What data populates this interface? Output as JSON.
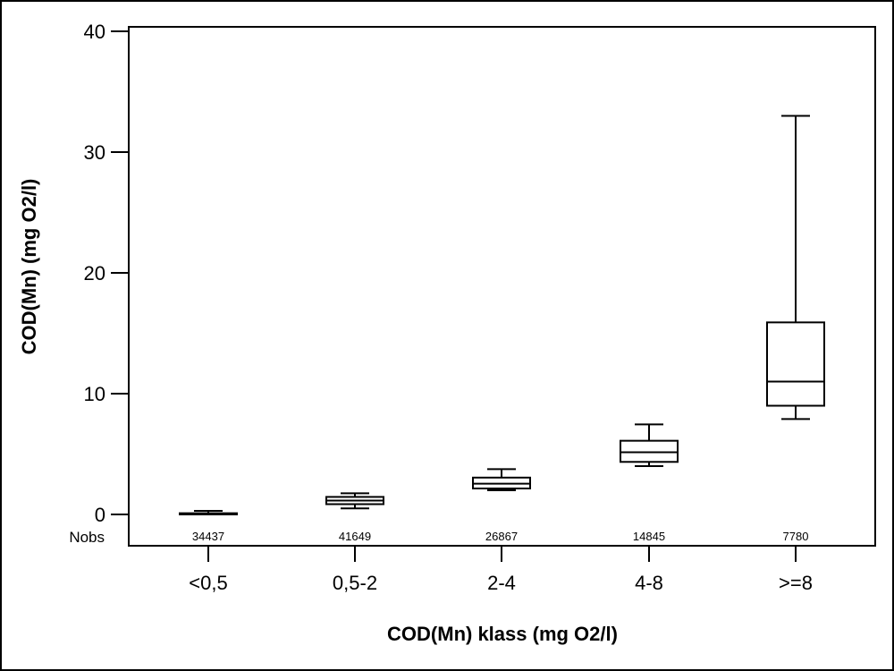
{
  "chart_data": {
    "type": "boxplot",
    "xlabel": "COD(Mn) klass (mg O2/l)",
    "ylabel": "COD(Mn) (mg O2/l)",
    "ylim": [
      0,
      40
    ],
    "yticks": [
      "0",
      "10",
      "20",
      "30",
      "40"
    ],
    "nobs_label": "Nobs",
    "grid": false,
    "categories": [
      "<0,5",
      "0,5-2",
      "2-4",
      "4-8",
      ">=8"
    ],
    "boxes": [
      {
        "category": "<0,5",
        "whisker_low": 0.0,
        "q1": 0.0,
        "median": 0.0,
        "q3": 0.1,
        "whisker_high": 0.3,
        "nobs": "34437"
      },
      {
        "category": "0,5-2",
        "whisker_low": 0.5,
        "q1": 0.85,
        "median": 1.15,
        "q3": 1.45,
        "whisker_high": 1.75,
        "nobs": "41649"
      },
      {
        "category": "2-4",
        "whisker_low": 2.0,
        "q1": 2.15,
        "median": 2.55,
        "q3": 3.05,
        "whisker_high": 3.75,
        "nobs": "26867"
      },
      {
        "category": "4-8",
        "whisker_low": 4.0,
        "q1": 4.35,
        "median": 5.15,
        "q3": 6.1,
        "whisker_high": 7.45,
        "nobs": "14845"
      },
      {
        "category": ">=8",
        "whisker_low": 7.9,
        "q1": 9.0,
        "median": 11.0,
        "q3": 15.9,
        "whisker_high": 33.0,
        "nobs": "7780"
      }
    ]
  }
}
